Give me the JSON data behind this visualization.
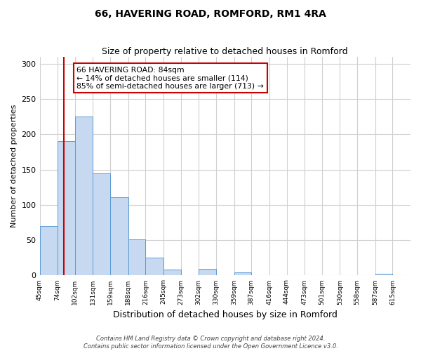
{
  "title": "66, HAVERING ROAD, ROMFORD, RM1 4RA",
  "subtitle": "Size of property relative to detached houses in Romford",
  "xlabel": "Distribution of detached houses by size in Romford",
  "ylabel": "Number of detached properties",
  "bin_labels": [
    "45sqm",
    "74sqm",
    "102sqm",
    "131sqm",
    "159sqm",
    "188sqm",
    "216sqm",
    "245sqm",
    "273sqm",
    "302sqm",
    "330sqm",
    "359sqm",
    "387sqm",
    "416sqm",
    "444sqm",
    "473sqm",
    "501sqm",
    "530sqm",
    "558sqm",
    "587sqm",
    "615sqm"
  ],
  "bin_edges": [
    45,
    74,
    102,
    131,
    159,
    188,
    216,
    245,
    273,
    302,
    330,
    359,
    387,
    416,
    444,
    473,
    501,
    530,
    558,
    587,
    615,
    644
  ],
  "bar_heights": [
    70,
    190,
    225,
    145,
    111,
    51,
    25,
    8,
    0,
    9,
    0,
    4,
    0,
    0,
    0,
    0,
    0,
    0,
    0,
    2,
    0
  ],
  "bar_color": "#c6d9f0",
  "bar_edge_color": "#5b9bd5",
  "property_line_x": 84,
  "vline_color": "#cc0000",
  "annotation_box_color": "#cc0000",
  "annotation_text_line1": "66 HAVERING ROAD: 84sqm",
  "annotation_text_line2": "← 14% of detached houses are smaller (114)",
  "annotation_text_line3": "85% of semi-detached houses are larger (713) →",
  "ylim": [
    0,
    310
  ],
  "yticks": [
    0,
    50,
    100,
    150,
    200,
    250,
    300
  ],
  "footer_line1": "Contains HM Land Registry data © Crown copyright and database right 2024.",
  "footer_line2": "Contains public sector information licensed under the Open Government Licence v3.0.",
  "background_color": "#ffffff",
  "grid_color": "#d0d0d0"
}
